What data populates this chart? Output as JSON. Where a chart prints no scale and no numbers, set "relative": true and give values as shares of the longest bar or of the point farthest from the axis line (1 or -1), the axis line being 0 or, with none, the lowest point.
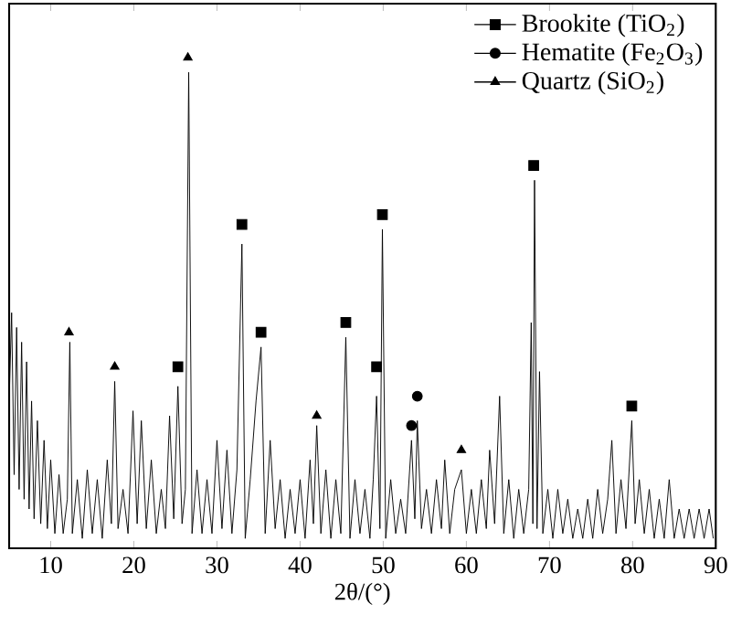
{
  "chart_data": {
    "type": "line",
    "relative": true,
    "xlabel": "2θ/(°)",
    "xlim": [
      5,
      90
    ],
    "xticks": [
      10,
      20,
      30,
      40,
      50,
      60,
      70,
      80,
      90
    ],
    "tick_labels": "x",
    "legend": "top right",
    "series": [
      {
        "color": "#000000",
        "marker": "none",
        "x": [
          5.0,
          5.3,
          5.6,
          5.9,
          6.2,
          6.5,
          6.8,
          7.1,
          7.4,
          7.7,
          8.0,
          8.4,
          8.8,
          9.2,
          9.6,
          10.0,
          10.5,
          11.0,
          11.5,
          12.0,
          12.3,
          12.6,
          13.2,
          13.8,
          14.4,
          15.0,
          15.6,
          16.2,
          16.8,
          17.3,
          17.7,
          18.1,
          18.7,
          19.3,
          19.9,
          20.4,
          20.9,
          21.5,
          22.1,
          22.7,
          23.3,
          23.8,
          24.3,
          24.8,
          25.3,
          25.8,
          26.2,
          26.6,
          27.0,
          27.6,
          28.2,
          28.8,
          29.4,
          30.0,
          30.6,
          31.2,
          31.8,
          32.4,
          33.0,
          33.4,
          34.0,
          34.7,
          35.3,
          35.8,
          36.4,
          37.0,
          37.6,
          38.2,
          38.8,
          39.4,
          40.0,
          40.6,
          41.2,
          41.6,
          42.0,
          42.5,
          43.1,
          43.7,
          44.3,
          44.9,
          45.5,
          46.0,
          46.6,
          47.2,
          47.8,
          48.4,
          48.8,
          49.2,
          49.6,
          49.9,
          50.3,
          50.9,
          51.5,
          52.1,
          52.7,
          53.4,
          53.8,
          54.1,
          54.6,
          55.2,
          55.8,
          56.4,
          57.0,
          57.4,
          58.0,
          58.6,
          59.4,
          60.0,
          60.6,
          61.2,
          61.8,
          62.4,
          62.8,
          63.4,
          64.0,
          64.5,
          65.1,
          65.7,
          66.3,
          66.9,
          67.5,
          67.8,
          68.0,
          68.2,
          68.5,
          68.8,
          69.2,
          69.8,
          70.4,
          71.0,
          71.6,
          72.2,
          72.8,
          73.4,
          74.0,
          74.6,
          75.2,
          75.8,
          76.4,
          77.0,
          77.5,
          78.0,
          78.6,
          79.2,
          79.9,
          80.3,
          80.8,
          81.4,
          82.0,
          82.6,
          83.2,
          83.8,
          84.4,
          85.0,
          85.6,
          86.2,
          86.8,
          87.4,
          88.0,
          88.6,
          89.2,
          89.7
        ],
        "values": [
          0.3,
          0.48,
          0.15,
          0.45,
          0.12,
          0.42,
          0.1,
          0.38,
          0.08,
          0.3,
          0.06,
          0.26,
          0.05,
          0.22,
          0.04,
          0.18,
          0.03,
          0.15,
          0.03,
          0.1,
          0.42,
          0.03,
          0.14,
          0.02,
          0.16,
          0.03,
          0.14,
          0.02,
          0.18,
          0.05,
          0.34,
          0.04,
          0.12,
          0.03,
          0.28,
          0.05,
          0.26,
          0.04,
          0.18,
          0.03,
          0.12,
          0.04,
          0.27,
          0.06,
          0.33,
          0.05,
          0.12,
          0.97,
          0.03,
          0.16,
          0.03,
          0.14,
          0.03,
          0.22,
          0.04,
          0.2,
          0.03,
          0.16,
          0.62,
          0.02,
          0.14,
          0.3,
          0.41,
          0.03,
          0.22,
          0.04,
          0.14,
          0.02,
          0.12,
          0.03,
          0.14,
          0.02,
          0.18,
          0.05,
          0.25,
          0.03,
          0.16,
          0.02,
          0.14,
          0.03,
          0.43,
          0.02,
          0.14,
          0.03,
          0.12,
          0.02,
          0.14,
          0.31,
          0.04,
          0.65,
          0.02,
          0.14,
          0.03,
          0.1,
          0.03,
          0.22,
          0.06,
          0.26,
          0.04,
          0.12,
          0.03,
          0.14,
          0.04,
          0.18,
          0.03,
          0.12,
          0.16,
          0.03,
          0.12,
          0.03,
          0.14,
          0.04,
          0.2,
          0.05,
          0.31,
          0.03,
          0.14,
          0.02,
          0.12,
          0.03,
          0.12,
          0.46,
          0.05,
          0.75,
          0.04,
          0.36,
          0.03,
          0.12,
          0.02,
          0.12,
          0.03,
          0.1,
          0.02,
          0.08,
          0.02,
          0.1,
          0.02,
          0.12,
          0.03,
          0.1,
          0.22,
          0.03,
          0.14,
          0.04,
          0.26,
          0.05,
          0.14,
          0.03,
          0.12,
          0.02,
          0.1,
          0.02,
          0.14,
          0.02,
          0.08,
          0.02,
          0.08,
          0.02,
          0.08,
          0.02,
          0.08,
          0.02
        ]
      },
      {
        "type": "scatter",
        "name": "Brookite (TiO$_{2}$)",
        "color": "#000000",
        "marker": "square",
        "x": [
          25.3,
          33.0,
          35.3,
          45.5,
          49.2,
          49.9,
          68.1,
          79.9
        ],
        "values": [
          0.37,
          0.66,
          0.44,
          0.46,
          0.37,
          0.68,
          0.78,
          0.29
        ]
      },
      {
        "type": "scatter",
        "name": "Hematite (Fe$_{2}$O$_{3}$)",
        "color": "#000000",
        "marker": "circle",
        "x": [
          53.4,
          54.1
        ],
        "values": [
          0.25,
          0.31
        ]
      },
      {
        "type": "scatter",
        "name": "Quartz (SiO$_{2}$)",
        "color": "#000000",
        "marker": "triangle",
        "x": [
          12.2,
          17.7,
          26.5,
          42.0,
          59.4
        ],
        "values": [
          0.44,
          0.37,
          1.0,
          0.27,
          0.2
        ]
      }
    ]
  }
}
